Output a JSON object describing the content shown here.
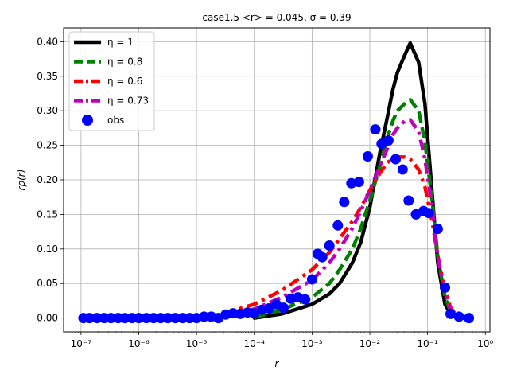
{
  "chart_data": {
    "type": "line",
    "title": "case1.5  <r> = 0.045, σ = 0.39",
    "xlabel": "r",
    "ylabel": "rp(r)",
    "xscale": "log",
    "xlim": [
      5e-08,
      1.2
    ],
    "ylim": [
      -0.02,
      0.42
    ],
    "grid": true,
    "legend_position": "top-left",
    "x_ticks": [
      {
        "value": 1e-07,
        "label": "10⁻⁷"
      },
      {
        "value": 1e-06,
        "label": "10⁻⁶"
      },
      {
        "value": 1e-05,
        "label": "10⁻⁵"
      },
      {
        "value": 0.0001,
        "label": "10⁻⁴"
      },
      {
        "value": 0.001,
        "label": "10⁻³"
      },
      {
        "value": 0.01,
        "label": "10⁻²"
      },
      {
        "value": 0.1,
        "label": "10⁻¹"
      },
      {
        "value": 1,
        "label": "10⁰"
      }
    ],
    "y_ticks": [
      {
        "value": 0.0,
        "label": "0.00"
      },
      {
        "value": 0.05,
        "label": "0.05"
      },
      {
        "value": 0.1,
        "label": "0.10"
      },
      {
        "value": 0.15,
        "label": "0.15"
      },
      {
        "value": 0.2,
        "label": "0.20"
      },
      {
        "value": 0.25,
        "label": "0.25"
      },
      {
        "value": 0.3,
        "label": "0.30"
      },
      {
        "value": 0.35,
        "label": "0.35"
      },
      {
        "value": 0.4,
        "label": "0.40"
      }
    ],
    "series": [
      {
        "name": "η = 1",
        "kind": "line",
        "style": "solid",
        "color": "#000000",
        "x": [
          0.0001,
          0.0003,
          0.001,
          0.002,
          0.003,
          0.005,
          0.007,
          0.01,
          0.015,
          0.02,
          0.025,
          0.03,
          0.04,
          0.05,
          0.07,
          0.09,
          0.12,
          0.15,
          0.2,
          0.25,
          0.3,
          0.4,
          0.5
        ],
        "y": [
          0.0,
          0.006,
          0.02,
          0.035,
          0.05,
          0.08,
          0.11,
          0.16,
          0.24,
          0.29,
          0.33,
          0.355,
          0.38,
          0.398,
          0.37,
          0.31,
          0.18,
          0.08,
          0.02,
          0.006,
          0.002,
          0.0,
          0.0
        ]
      },
      {
        "name": "η = 0.8",
        "kind": "line",
        "style": "dashed",
        "color": "#008000",
        "x": [
          0.0001,
          0.0003,
          0.001,
          0.002,
          0.003,
          0.005,
          0.007,
          0.01,
          0.015,
          0.02,
          0.025,
          0.03,
          0.04,
          0.05,
          0.07,
          0.09,
          0.12,
          0.15,
          0.2,
          0.25,
          0.3,
          0.4,
          0.5
        ],
        "y": [
          0.001,
          0.012,
          0.03,
          0.05,
          0.07,
          0.1,
          0.13,
          0.17,
          0.22,
          0.26,
          0.285,
          0.3,
          0.31,
          0.316,
          0.3,
          0.255,
          0.17,
          0.09,
          0.03,
          0.01,
          0.004,
          0.001,
          0.0
        ]
      },
      {
        "name": "η = 0.6",
        "kind": "line",
        "style": "dashdot",
        "color": "#ff0000",
        "x": [
          3e-05,
          0.0001,
          0.0003,
          0.001,
          0.002,
          0.003,
          0.005,
          0.007,
          0.01,
          0.015,
          0.02,
          0.025,
          0.03,
          0.04,
          0.05,
          0.07,
          0.09,
          0.12,
          0.15,
          0.2,
          0.25,
          0.3,
          0.4,
          0.5
        ],
        "y": [
          0.007,
          0.02,
          0.04,
          0.07,
          0.095,
          0.115,
          0.14,
          0.16,
          0.185,
          0.21,
          0.225,
          0.23,
          0.233,
          0.233,
          0.23,
          0.215,
          0.19,
          0.14,
          0.09,
          0.04,
          0.015,
          0.006,
          0.001,
          0.0
        ]
      },
      {
        "name": "η = 0.73",
        "kind": "line",
        "style": "dashdot",
        "color": "#bf00bf",
        "x": [
          3e-05,
          0.0001,
          0.0003,
          0.001,
          0.002,
          0.003,
          0.005,
          0.007,
          0.01,
          0.015,
          0.02,
          0.025,
          0.03,
          0.04,
          0.05,
          0.07,
          0.09,
          0.12,
          0.15,
          0.2,
          0.25,
          0.3,
          0.4,
          0.5
        ],
        "y": [
          0.003,
          0.013,
          0.03,
          0.055,
          0.08,
          0.1,
          0.13,
          0.155,
          0.185,
          0.22,
          0.245,
          0.265,
          0.275,
          0.285,
          0.287,
          0.27,
          0.23,
          0.16,
          0.09,
          0.035,
          0.012,
          0.005,
          0.001,
          0.0
        ]
      },
      {
        "name": "obs",
        "kind": "scatter",
        "color": "#0000ff",
        "x": [
          1.1e-07,
          1.4e-07,
          1.9e-07,
          2.5e-07,
          3.3e-07,
          4.4e-07,
          5.8e-07,
          7.7e-07,
          1e-06,
          1.35e-06,
          1.8e-06,
          2.4e-06,
          3.2e-06,
          4.3e-06,
          5.7e-06,
          7.6e-06,
          1e-05,
          1.35e-05,
          1.8e-05,
          2.4e-05,
          3.2e-05,
          4.3e-05,
          5.7e-05,
          7.6e-05,
          0.0001,
          0.000135,
          0.00018,
          0.00024,
          0.00032,
          0.00043,
          0.00057,
          0.00076,
          0.001,
          0.00125,
          0.0015,
          0.002,
          0.0028,
          0.0036,
          0.0048,
          0.0065,
          0.0092,
          0.0125,
          0.016,
          0.021,
          0.028,
          0.037,
          0.047,
          0.063,
          0.085,
          0.105,
          0.15,
          0.2,
          0.25,
          0.35,
          0.52
        ],
        "y": [
          0.0,
          0.0,
          0.0,
          0.0,
          0.0,
          0.0,
          0.0,
          0.0,
          0.0,
          0.0,
          0.0,
          0.0,
          0.0,
          0.0,
          0.0,
          0.0,
          0.0,
          0.002,
          0.002,
          0.0,
          0.005,
          0.007,
          0.006,
          0.008,
          0.007,
          0.012,
          0.014,
          0.02,
          0.015,
          0.028,
          0.03,
          0.027,
          0.056,
          0.093,
          0.088,
          0.105,
          0.134,
          0.168,
          0.195,
          0.197,
          0.234,
          0.273,
          0.252,
          0.257,
          0.23,
          0.215,
          0.17,
          0.15,
          0.155,
          0.152,
          0.129,
          0.044,
          0.006,
          0.002,
          0.0
        ]
      }
    ]
  }
}
